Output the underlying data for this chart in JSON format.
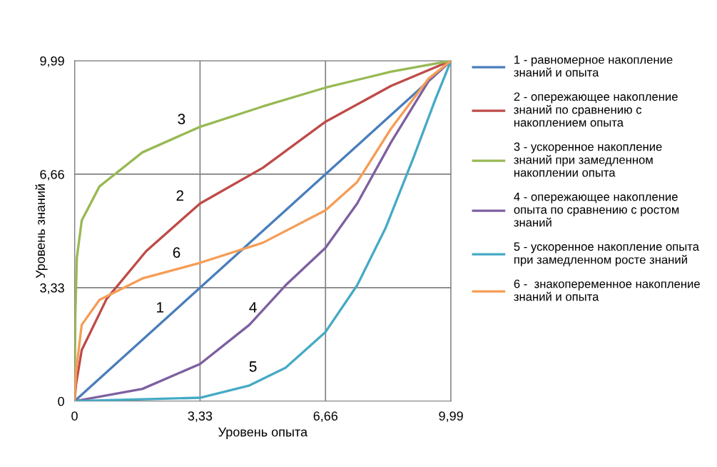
{
  "chart_data": {
    "type": "line",
    "xlabel": "Уровень опыта",
    "ylabel": "Уровень знаний",
    "xlim": [
      0,
      9.99
    ],
    "ylim": [
      0,
      9.99
    ],
    "xticks": [
      0,
      {
        "value": 3.33,
        "label": "3,33"
      },
      {
        "value": 6.66,
        "label": "6,66"
      },
      {
        "value": 9.99,
        "label": "9,99"
      }
    ],
    "yticks": [
      0,
      {
        "value": 3.33,
        "label": "3,33"
      },
      {
        "value": 6.66,
        "label": "6,66"
      },
      {
        "value": 9.99,
        "label": "9,99"
      }
    ],
    "grid": true,
    "legend": "right",
    "marker": "none",
    "line_style": "solid",
    "series": [
      {
        "name": "1 - равномерное накопление знаний и опыта",
        "color": "#4a7ebb",
        "x": [
          0,
          9.99
        ],
        "values": [
          0,
          9.99
        ]
      },
      {
        "name": "2 - опережающее накопление знаний по сравнению с накоплением опыта",
        "color": "#be4b48",
        "x": [
          0,
          0.04,
          0.19,
          0.85,
          1.9,
          3.33,
          5.0,
          6.66,
          8.4,
          9.99
        ],
        "values": [
          0,
          0.5,
          1.5,
          3.0,
          4.4,
          5.8,
          6.85,
          8.2,
          9.25,
          9.99
        ]
      },
      {
        "name": "3 - ускоренное накопление знаний при замедленном накоплении опыта",
        "color": "#98b954",
        "x": [
          0,
          0.02,
          0.06,
          0.19,
          0.66,
          1.8,
          3.33,
          5.0,
          6.66,
          8.4,
          9.99
        ],
        "values": [
          0,
          2.5,
          4.2,
          5.3,
          6.3,
          7.3,
          8.05,
          8.65,
          9.2,
          9.67,
          9.99
        ]
      },
      {
        "name": "4 - опережающее накопление опыта по сравнению с ростом знаний",
        "color": "#7d60a0",
        "x": [
          0,
          1.8,
          3.33,
          4.64,
          5.6,
          6.66,
          7.5,
          8.4,
          9.4,
          9.99
        ],
        "values": [
          0,
          0.36,
          1.09,
          2.24,
          3.4,
          4.5,
          5.8,
          7.6,
          9.4,
          9.99
        ]
      },
      {
        "name": "5 - ускоренное накопление опыта при замедленном росте знаний",
        "color": "#46aac5",
        "x": [
          0,
          3.33,
          4.64,
          5.6,
          6.66,
          7.5,
          8.25,
          9.0,
          9.57,
          9.99
        ],
        "values": [
          0,
          0.1,
          0.46,
          0.98,
          2.03,
          3.4,
          5.07,
          7.16,
          8.84,
          9.99
        ]
      },
      {
        "name": "6 -  знакопеременное накопление знаний и опыта",
        "color": "#f59d56",
        "x": [
          0,
          0.04,
          0.19,
          0.66,
          1.8,
          3.33,
          5.0,
          6.66,
          7.5,
          8.4,
          9.4,
          9.99
        ],
        "values": [
          0,
          0.88,
          2.24,
          2.97,
          3.6,
          4.06,
          4.65,
          5.6,
          6.43,
          8.0,
          9.47,
          9.99
        ]
      }
    ],
    "annotations": [
      "1",
      "2",
      "3",
      "4",
      "5",
      "6"
    ]
  }
}
